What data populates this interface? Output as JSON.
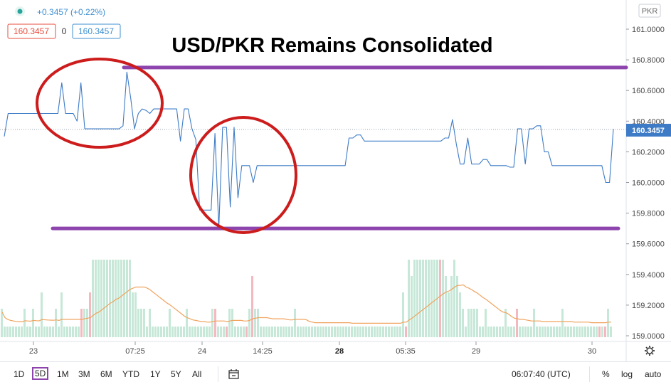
{
  "header": {
    "change_text": "+0.3457 (+0.22%)",
    "bid": "160.3457",
    "spread": "0",
    "ask": "160.3457",
    "currency_badge": "PKR",
    "live_dot_color": "#26a69a",
    "bid_color": "#e74c3c",
    "ask_color": "#3d8fd1"
  },
  "chart_data": {
    "type": "line",
    "title": "USD/PKR Remains Consolidated",
    "xlabel": "",
    "ylabel": "",
    "ylim": [
      159.0,
      161.0
    ],
    "yticks": [
      "161.0000",
      "160.8000",
      "160.6000",
      "160.4000",
      "160.2000",
      "160.0000",
      "159.8000",
      "159.6000",
      "159.4000",
      "159.2000",
      "159.0000"
    ],
    "xticks": [
      {
        "label": "23",
        "bold": false
      },
      {
        "label": "07:25",
        "bold": false
      },
      {
        "label": "24",
        "bold": false
      },
      {
        "label": "14:25",
        "bold": false
      },
      {
        "label": "28",
        "bold": true
      },
      {
        "label": "05:35",
        "bold": false
      },
      {
        "label": "29",
        "bold": false
      },
      {
        "label": "30",
        "bold": false
      }
    ],
    "last_price_label": "160.3457",
    "line_color": "#3d7bc6",
    "series": [
      {
        "values": [
          160.3,
          160.45,
          160.45,
          160.45,
          160.45,
          160.45,
          160.45,
          160.45,
          160.45,
          160.45,
          160.45,
          160.45,
          160.45,
          160.45,
          160.45,
          160.65,
          160.45,
          160.45,
          160.45,
          160.4,
          160.65,
          160.35,
          160.35,
          160.35,
          160.35,
          160.35,
          160.35,
          160.35,
          160.35,
          160.35,
          160.35,
          160.37,
          160.72,
          160.55,
          160.35,
          160.45,
          160.48,
          160.47,
          160.45,
          160.48,
          160.48,
          160.48,
          160.48,
          160.48,
          160.48,
          160.48,
          160.27,
          160.48,
          160.48,
          160.35,
          160.28,
          159.82,
          159.82,
          159.82,
          159.82,
          160.32,
          159.7,
          160.36,
          160.36,
          159.84,
          160.36,
          159.9,
          160.11,
          160.11,
          160.11,
          160.0,
          160.11,
          160.11,
          160.11,
          160.11,
          160.11,
          160.11,
          160.11,
          160.11,
          160.11,
          160.11,
          160.11,
          160.11,
          160.11,
          160.11,
          160.11,
          160.11,
          160.11,
          160.11,
          160.11,
          160.11,
          160.11,
          160.11,
          160.11,
          160.11,
          160.29,
          160.29,
          160.31,
          160.31,
          160.27,
          160.27,
          160.27,
          160.27,
          160.27,
          160.27,
          160.27,
          160.27,
          160.27,
          160.27,
          160.27,
          160.27,
          160.27,
          160.27,
          160.27,
          160.27,
          160.27,
          160.27,
          160.27,
          160.27,
          160.27,
          160.29,
          160.29,
          160.41,
          160.25,
          160.12,
          160.12,
          160.29,
          160.12,
          160.12,
          160.12,
          160.15,
          160.15,
          160.11,
          160.11,
          160.11,
          160.11,
          160.11,
          160.1,
          160.1,
          160.35,
          160.35,
          160.12,
          160.35,
          160.35,
          160.37,
          160.37,
          160.2,
          160.2,
          160.11,
          160.11,
          160.11,
          160.11,
          160.11,
          160.11,
          160.11,
          160.11,
          160.11,
          160.11,
          160.11,
          160.11,
          160.11,
          160.11,
          160.0,
          160.0,
          160.35
        ]
      },
      {
        "name": "volume",
        "values": [
          2,
          1,
          1,
          1,
          1,
          1,
          1,
          1,
          2,
          1,
          1,
          2,
          1,
          1,
          3,
          1,
          1,
          1,
          1,
          2,
          1,
          3,
          1,
          1,
          1,
          1,
          1,
          1,
          2,
          2,
          2,
          3,
          5,
          5,
          5,
          5,
          5,
          5,
          5,
          5,
          5,
          5,
          5,
          5,
          5,
          5,
          3,
          3,
          2,
          2,
          2,
          1,
          2,
          1,
          1,
          1,
          1,
          1,
          1,
          2,
          1,
          1,
          1,
          1,
          1,
          2,
          1,
          1,
          1,
          1,
          1,
          1,
          1,
          1,
          2,
          2,
          1,
          1,
          1,
          1,
          2,
          2,
          1,
          1,
          1,
          1,
          1,
          2,
          4,
          2,
          2,
          1,
          1,
          1,
          1,
          1,
          1,
          1,
          1,
          1,
          1,
          1,
          1,
          2,
          1,
          1,
          1,
          1,
          1,
          1,
          1,
          1,
          1,
          1,
          1,
          1,
          1,
          1,
          1,
          1,
          1,
          1,
          1,
          1,
          1,
          1,
          1,
          1,
          1,
          1,
          1,
          1,
          1,
          1,
          1,
          1,
          1,
          1,
          1,
          1,
          1,
          3,
          1,
          5,
          4,
          5,
          5,
          5,
          5,
          5,
          5,
          5,
          5,
          5,
          5,
          5,
          4,
          3,
          4,
          5,
          4,
          3,
          2,
          1,
          2,
          2,
          2,
          2,
          1,
          1,
          2,
          1,
          1,
          1,
          1,
          1,
          1,
          2,
          1,
          1,
          1,
          2,
          1,
          1,
          1,
          1,
          1,
          2,
          1,
          1,
          1,
          1,
          1,
          1,
          1,
          1,
          1,
          2,
          1,
          1,
          1,
          1,
          1,
          1,
          1,
          1,
          1,
          1,
          1,
          1,
          1,
          1,
          1,
          2,
          1
        ]
      }
    ],
    "annotations": {
      "support_level": 159.7,
      "resistance_level": 160.75,
      "line_color": "#8e44ad",
      "circle_color": "#cc1c1c"
    }
  },
  "bottom": {
    "timeframes": [
      "1D",
      "5D",
      "1M",
      "3M",
      "6M",
      "YTD",
      "1Y",
      "5Y",
      "All"
    ],
    "active_timeframe": "5D",
    "clock": "06:07:40 (UTC)",
    "percent": "%",
    "log": "log",
    "auto": "auto"
  }
}
